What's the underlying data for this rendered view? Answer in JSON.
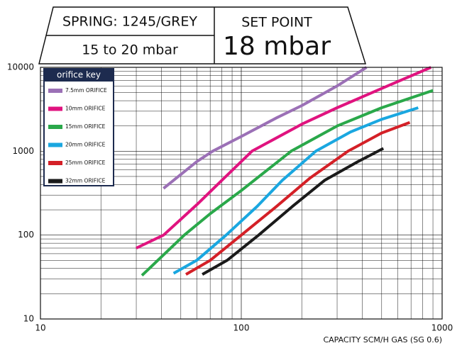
{
  "chart_data": {
    "type": "line",
    "header": {
      "spring": "SPRING: 1245/GREY",
      "range": "15 to 20 mbar",
      "set_point_label": "SET POINT",
      "set_point": "18 mbar"
    },
    "xlabel": "CAPACITY SCM/H GAS (SG 0.6)",
    "xscale": "log",
    "yscale": "log",
    "xlim": [
      10,
      1000
    ],
    "ylim": [
      10,
      10000
    ],
    "xticks": [
      10,
      100,
      1000
    ],
    "yticks": [
      10,
      100,
      1000,
      10000
    ],
    "grid": true,
    "minor_grid": true,
    "legend_title": "orifice key",
    "legend": "top-left",
    "series": [
      {
        "name": "7.5mm ORIFICE",
        "color": "#9b70b6",
        "x": [
          41,
          60,
          72,
          100,
          150,
          200,
          300,
          420
        ],
        "values": [
          360,
          750,
          1000,
          1500,
          2500,
          3500,
          6000,
          10000
        ]
      },
      {
        "name": "10mm ORIFICE",
        "color": "#e0137f",
        "x": [
          30,
          41,
          60,
          80,
          113,
          200,
          300,
          500,
          880
        ],
        "values": [
          70,
          100,
          230,
          450,
          1000,
          2100,
          3300,
          5600,
          10000
        ]
      },
      {
        "name": "15mm ORIFICE",
        "color": "#2aa84a",
        "x": [
          32,
          52,
          70,
          100,
          177,
          300,
          500,
          900
        ],
        "values": [
          33,
          100,
          180,
          340,
          1000,
          2000,
          3300,
          5300
        ]
      },
      {
        "name": "20mm ORIFICE",
        "color": "#1aa7e0",
        "x": [
          46,
          60,
          84,
          120,
          160,
          235,
          350,
          500,
          760
        ],
        "values": [
          35,
          50,
          100,
          220,
          450,
          1000,
          1700,
          2400,
          3300
        ]
      },
      {
        "name": "25mm ORIFICE",
        "color": "#d42027",
        "x": [
          53,
          70,
          100,
          150,
          220,
          340,
          500,
          690
        ],
        "values": [
          34,
          50,
          100,
          220,
          480,
          1000,
          1650,
          2200
        ]
      },
      {
        "name": "32mm ORIFICE",
        "color": "#1a1a1a",
        "x": [
          64,
          85,
          122,
          180,
          260,
          380,
          510
        ],
        "values": [
          34,
          50,
          100,
          220,
          450,
          750,
          1080
        ]
      }
    ]
  }
}
